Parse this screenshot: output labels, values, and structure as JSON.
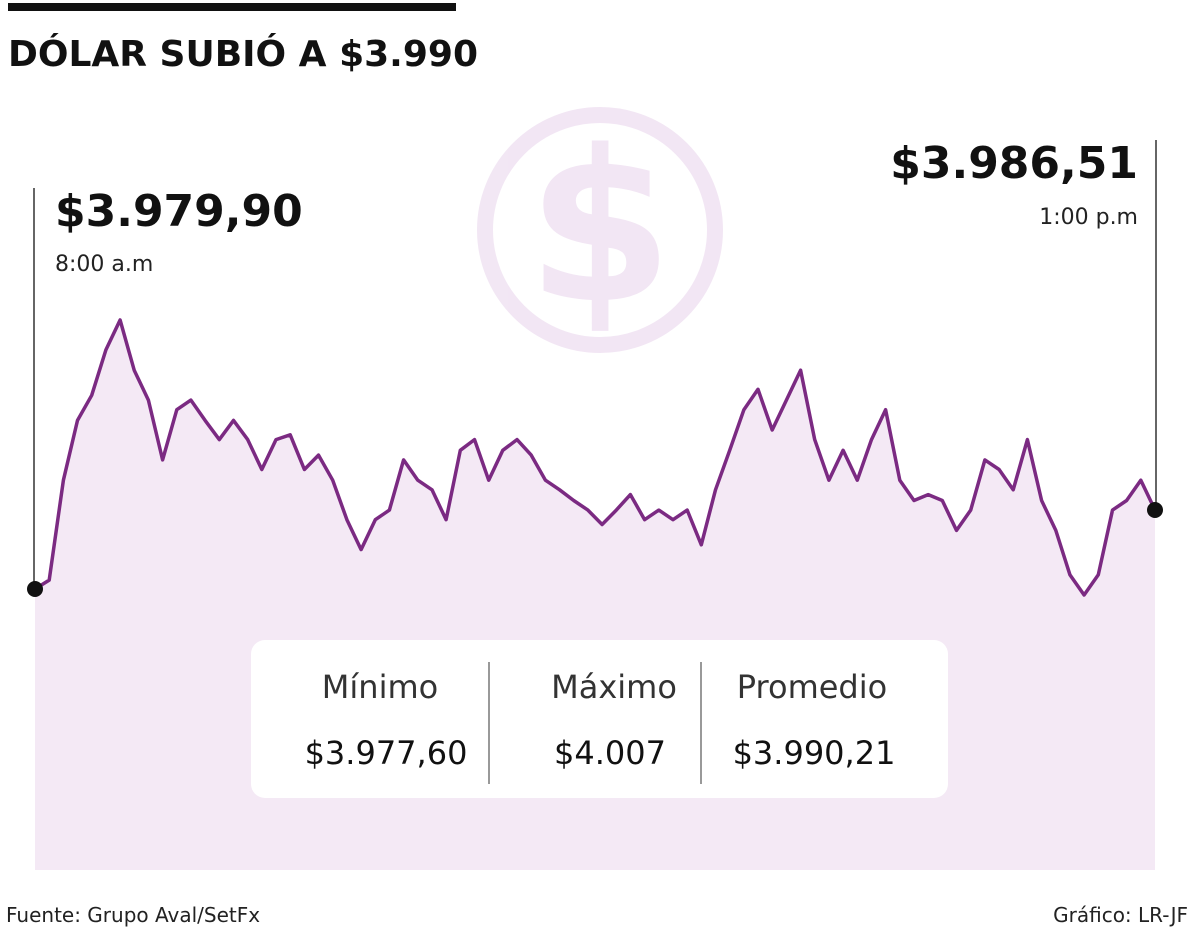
{
  "chart_data": {
    "type": "line",
    "title": "DÓLAR SUBIÓ A $3.990",
    "color": "#7b2a82",
    "area_color": "#f4e9f5",
    "values": [
      3979.9,
      3980.65,
      3989.0,
      3994.0,
      3996.1,
      3999.9,
      4002.4,
      3998.2,
      3995.7,
      3990.7,
      3994.9,
      3995.7,
      3994.0,
      3992.4,
      3994.0,
      3992.4,
      3989.9,
      3992.4,
      3992.8,
      3989.9,
      3991.1,
      3989.0,
      3985.7,
      3983.2,
      3985.7,
      3986.5,
      3990.7,
      3989.0,
      3988.2,
      3985.7,
      3991.5,
      3992.4,
      3989.0,
      3991.5,
      3992.4,
      3991.1,
      3989.0,
      3988.2,
      3987.3,
      3986.5,
      3985.3,
      3986.5,
      3987.8,
      3985.7,
      3986.5,
      3985.7,
      3986.5,
      3983.6,
      3988.2,
      3991.5,
      3994.9,
      3996.6,
      3993.2,
      3995.7,
      3998.2,
      3992.4,
      3989.0,
      3991.5,
      3989.0,
      3992.4,
      3994.9,
      3989.0,
      3987.3,
      3987.8,
      3987.3,
      3984.8,
      3986.5,
      3990.7,
      3989.9,
      3988.2,
      3992.4,
      3987.3,
      3984.8,
      3981.1,
      3979.4,
      3981.1,
      3986.5,
      3987.3,
      3989.0,
      3986.51
    ],
    "start": {
      "label": "$3.979,90",
      "time": "8:00 a.m"
    },
    "end": {
      "label": "$3.986,51",
      "time": "1:00 p.m"
    },
    "stats": [
      {
        "name": "Mínimo",
        "value": "$3.977,60"
      },
      {
        "name": "Máximo",
        "value": "$4.007"
      },
      {
        "name": "Promedio",
        "value": "$3.990,21"
      }
    ],
    "source": "Fuente: Grupo Aval/SetFx",
    "credit": "Gráfico: LR-JF"
  }
}
